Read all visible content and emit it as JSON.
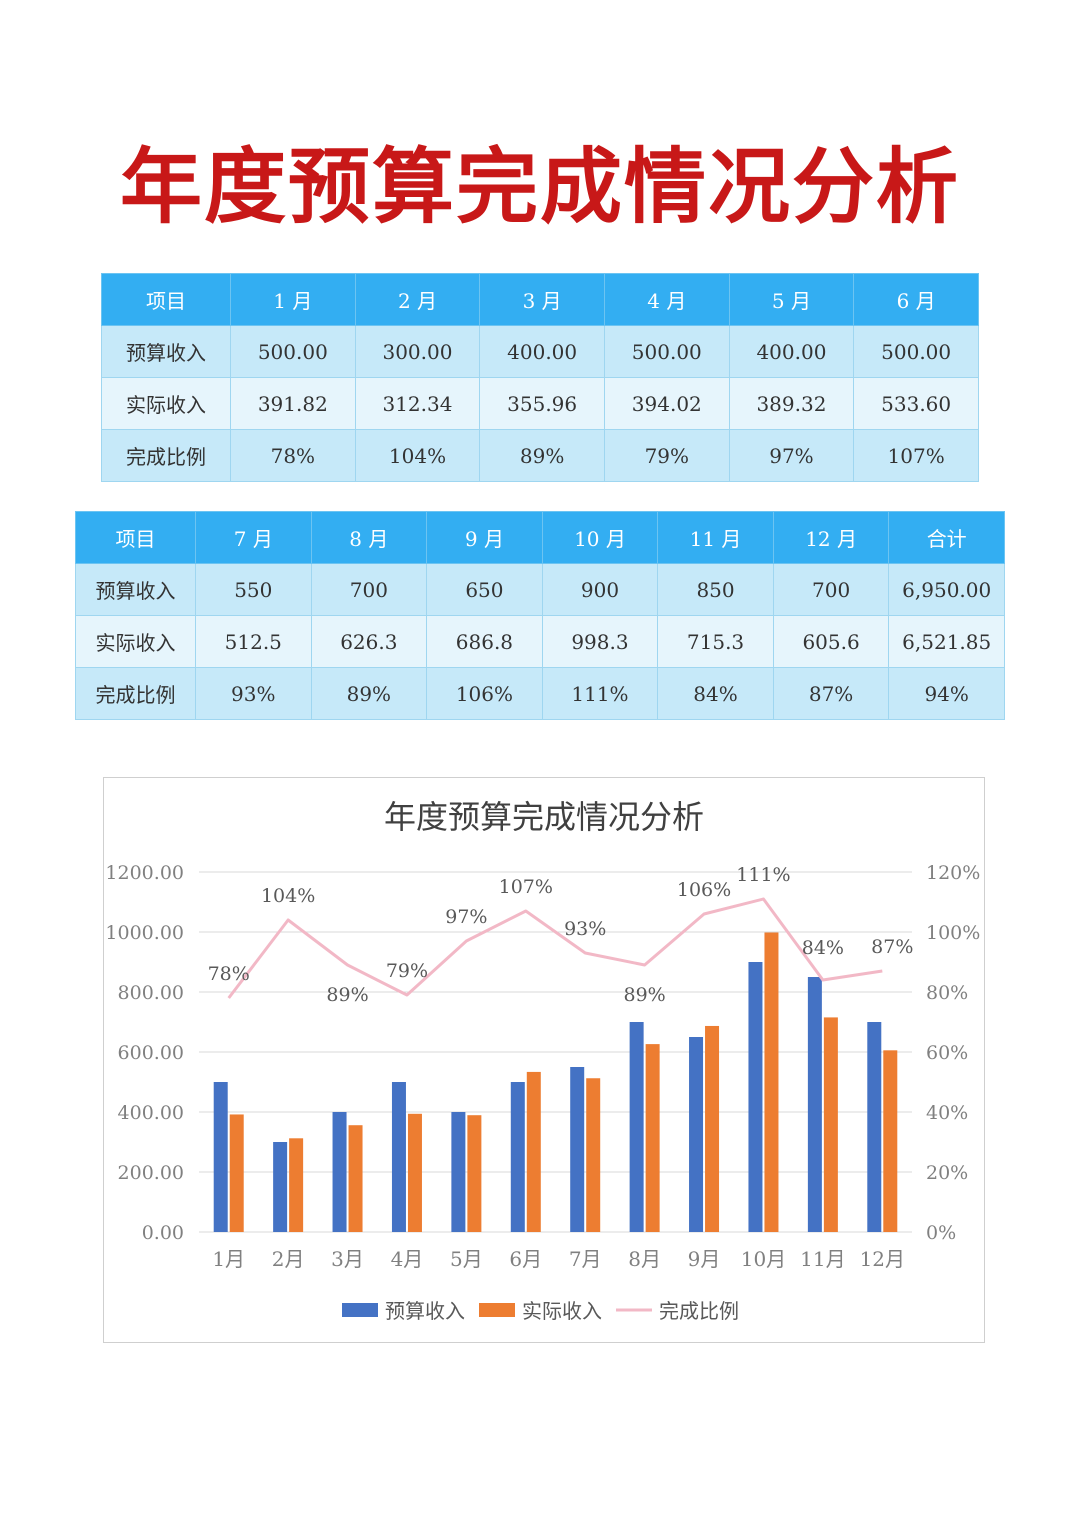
{
  "title": "年度预算完成情况分析",
  "table1": {
    "header": [
      "项目",
      "1 月",
      "2 月",
      "3 月",
      "4 月",
      "5 月",
      "6 月"
    ],
    "rows": [
      {
        "label": "预算收入",
        "cells": [
          "500.00",
          "300.00",
          "400.00",
          "500.00",
          "400.00",
          "500.00"
        ]
      },
      {
        "label": "实际收入",
        "cells": [
          "391.82",
          "312.34",
          "355.96",
          "394.02",
          "389.32",
          "533.60"
        ]
      },
      {
        "label": "完成比例",
        "cells": [
          "78%",
          "104%",
          "89%",
          "79%",
          "97%",
          "107%"
        ]
      }
    ]
  },
  "table2": {
    "header": [
      "项目",
      "7 月",
      "8 月",
      "9 月",
      "10 月",
      "11 月",
      "12 月",
      "合计"
    ],
    "rows": [
      {
        "label": "预算收入",
        "cells": [
          "550",
          "700",
          "650",
          "900",
          "850",
          "700",
          "6,950.00"
        ]
      },
      {
        "label": "实际收入",
        "cells": [
          "512.5",
          "626.3",
          "686.8",
          "998.3",
          "715.3",
          "605.6",
          "6,521.85"
        ]
      },
      {
        "label": "完成比例",
        "cells": [
          "93%",
          "89%",
          "106%",
          "111%",
          "84%",
          "87%",
          "94%"
        ]
      }
    ]
  },
  "chart_data": {
    "type": "bar",
    "title": "年度预算完成情况分析",
    "categories": [
      "1月",
      "2月",
      "3月",
      "4月",
      "5月",
      "6月",
      "7月",
      "8月",
      "9月",
      "10月",
      "11月",
      "12月"
    ],
    "series": [
      {
        "name": "预算收入",
        "type": "bar",
        "axis": "left",
        "color": "#4472c4",
        "values": [
          500,
          300,
          400,
          500,
          400,
          500,
          550,
          700,
          650,
          900,
          850,
          700
        ]
      },
      {
        "name": "实际收入",
        "type": "bar",
        "axis": "left",
        "color": "#ed7d31",
        "values": [
          391.82,
          312.34,
          355.96,
          394.02,
          389.32,
          533.6,
          512.5,
          626.3,
          686.8,
          998.3,
          715.3,
          605.6
        ]
      },
      {
        "name": "完成比例",
        "type": "line",
        "axis": "right",
        "color": "#f2b8c6",
        "values": [
          78,
          104,
          89,
          79,
          97,
          107,
          93,
          89,
          106,
          111,
          84,
          87
        ],
        "labels": [
          "78%",
          "104%",
          "89%",
          "79%",
          "97%",
          "107%",
          "93%",
          "89%",
          "106%",
          "111%",
          "84%",
          "87%"
        ]
      }
    ],
    "y_left": {
      "min": 0,
      "max": 1200,
      "ticks": [
        "0.00",
        "200.00",
        "400.00",
        "600.00",
        "800.00",
        "1000.00",
        "1200.00"
      ]
    },
    "y_right": {
      "min": 0,
      "max": 120,
      "ticks": [
        "0%",
        "20%",
        "40%",
        "60%",
        "80%",
        "100%",
        "120%"
      ]
    },
    "grid": true,
    "legend": "bottom"
  }
}
